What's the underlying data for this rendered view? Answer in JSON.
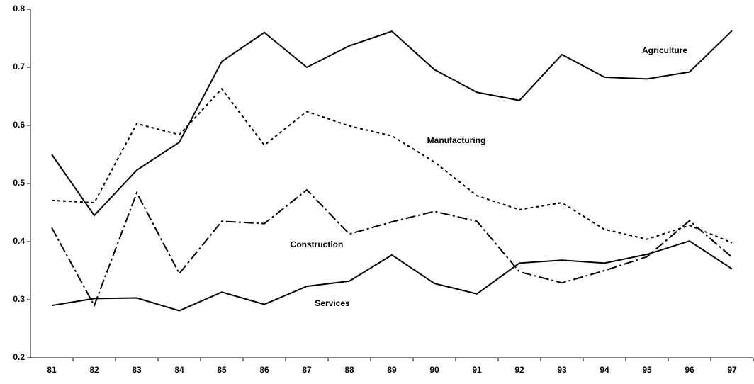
{
  "chart_data": {
    "type": "line",
    "categories": [
      "81",
      "82",
      "83",
      "84",
      "85",
      "86",
      "87",
      "88",
      "89",
      "90",
      "91",
      "92",
      "93",
      "94",
      "95",
      "96",
      "97"
    ],
    "ylim": [
      0.2,
      0.8
    ],
    "yticks": [
      0.2,
      0.3,
      0.4,
      0.5,
      0.6,
      0.7,
      0.8
    ],
    "series": [
      {
        "name": "Agriculture",
        "color": "#000000",
        "style": "solid",
        "values": [
          0.55,
          0.445,
          0.523,
          0.571,
          0.71,
          0.76,
          0.7,
          0.737,
          0.762,
          0.696,
          0.657,
          0.643,
          0.722,
          0.683,
          0.68,
          0.692,
          0.763
        ]
      },
      {
        "name": "Manufacturing",
        "color": "#000000",
        "style": "dotted",
        "values": [
          0.471,
          0.467,
          0.603,
          0.584,
          0.663,
          0.566,
          0.624,
          0.599,
          0.582,
          0.537,
          0.479,
          0.455,
          0.467,
          0.421,
          0.404,
          0.428,
          0.398
        ]
      },
      {
        "name": "Construction",
        "color": "#000000",
        "style": "dashdot",
        "values": [
          0.424,
          0.29,
          0.484,
          0.345,
          0.435,
          0.431,
          0.489,
          0.413,
          0.434,
          0.452,
          0.435,
          0.348,
          0.329,
          0.35,
          0.374,
          0.436,
          0.373
        ]
      },
      {
        "name": "Services",
        "color": "#000000",
        "style": "solid",
        "values": [
          0.29,
          0.302,
          0.303,
          0.281,
          0.313,
          0.292,
          0.323,
          0.332,
          0.377,
          0.328,
          0.31,
          0.363,
          0.368,
          0.363,
          0.378,
          0.401,
          0.353
        ]
      }
    ]
  }
}
